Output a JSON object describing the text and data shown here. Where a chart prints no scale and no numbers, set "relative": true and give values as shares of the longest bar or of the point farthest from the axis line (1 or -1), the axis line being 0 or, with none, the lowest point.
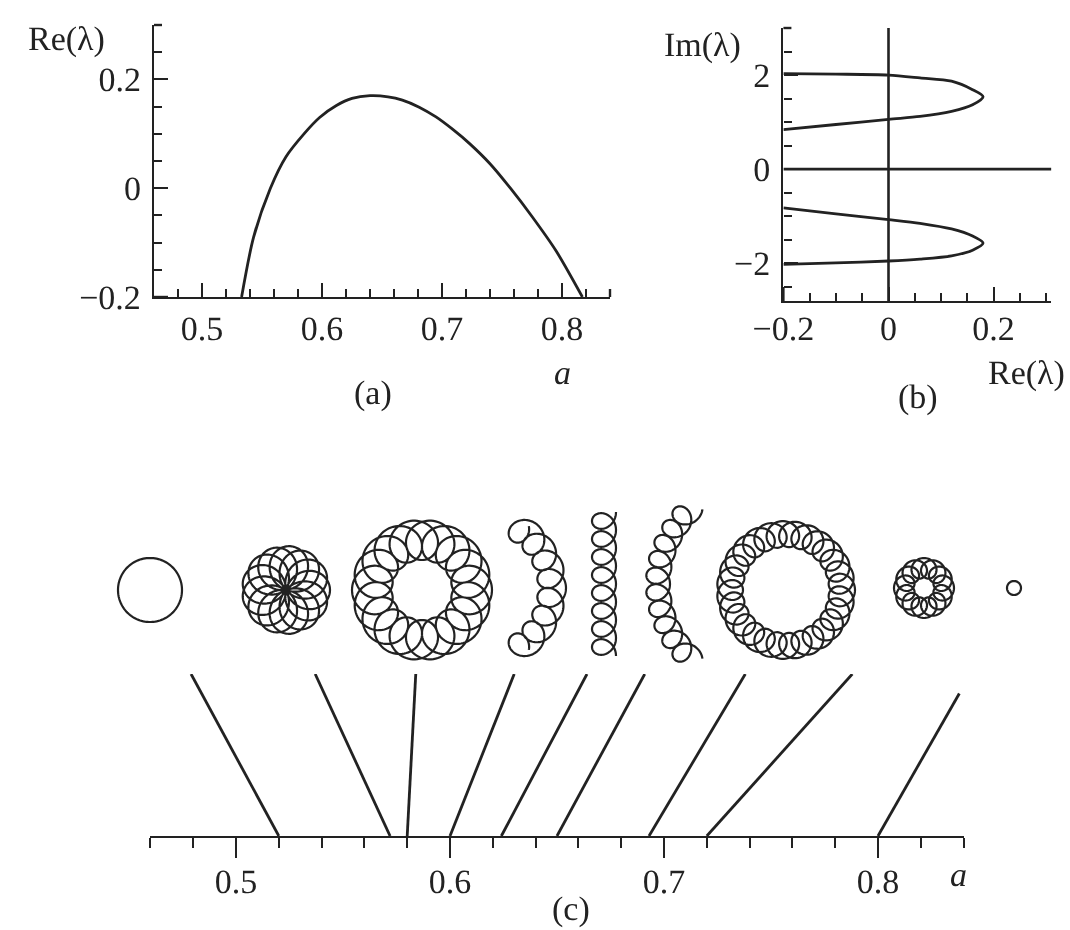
{
  "chart_data": [
    {
      "type": "line",
      "ylabel": "Re(λ)",
      "xlabel": "a",
      "annotations": [
        "(a)"
      ],
      "color": "#222222",
      "x": [
        0.533,
        0.543,
        0.557,
        0.57,
        0.585,
        0.598,
        0.612,
        0.625,
        0.64,
        0.655,
        0.667,
        0.681,
        0.695,
        0.709,
        0.723,
        0.74,
        0.757,
        0.775,
        0.795,
        0.817
      ],
      "values": [
        -0.2,
        -0.09,
        0.0,
        0.058,
        0.1,
        0.13,
        0.152,
        0.165,
        0.17,
        0.168,
        0.162,
        0.149,
        0.131,
        0.108,
        0.082,
        0.045,
        0.0,
        -0.052,
        -0.115,
        -0.2
      ],
      "xlim": [
        0.46,
        0.84
      ],
      "ylim": [
        -0.2,
        0.3
      ],
      "xticks": [
        {
          "value": 0.48,
          "label": null
        },
        0.5,
        {
          "value": 0.52,
          "label": null
        },
        {
          "value": 0.54,
          "label": null
        },
        {
          "value": 0.56,
          "label": null
        },
        {
          "value": 0.58,
          "label": null
        },
        0.6,
        {
          "value": 0.62,
          "label": null
        },
        {
          "value": 0.64,
          "label": null
        },
        {
          "value": 0.66,
          "label": null
        },
        {
          "value": 0.68,
          "label": null
        },
        0.7,
        {
          "value": 0.72,
          "label": null
        },
        {
          "value": 0.74,
          "label": null
        },
        {
          "value": 0.76,
          "label": null
        },
        {
          "value": 0.78,
          "label": null
        },
        0.8,
        {
          "value": 0.82,
          "label": null
        },
        {
          "value": 0.84,
          "label": null
        }
      ],
      "yticks": [
        {
          "value": -0.2,
          "label": "−0.2"
        },
        {
          "value": -0.15,
          "label": null
        },
        {
          "value": -0.1,
          "label": null
        },
        {
          "value": -0.05,
          "label": null
        },
        0,
        {
          "value": 0.05,
          "label": null
        },
        {
          "value": 0.1,
          "label": null
        },
        {
          "value": 0.15,
          "label": null
        },
        0.2,
        {
          "value": 0.25,
          "label": null
        },
        {
          "value": 0.3,
          "label": null
        }
      ]
    },
    {
      "type": "line",
      "ylabel": "Im(λ)",
      "xlabel": "Re(λ)",
      "annotations": [
        "(b)"
      ],
      "series": [
        {
          "color": "#222222",
          "x": [
            -0.2,
            -0.1,
            0.0,
            0.06,
            0.12,
            0.16,
            0.18,
            0.16,
            0.12,
            0.06,
            0.0,
            -0.1,
            -0.2
          ],
          "values": [
            2.03,
            2.02,
            2.0,
            1.94,
            1.87,
            1.69,
            1.54,
            1.37,
            1.23,
            1.12,
            1.06,
            0.95,
            0.84
          ]
        },
        {
          "color": "#222222",
          "x": [
            -0.2,
            0.31
          ],
          "values": [
            0,
            0
          ]
        },
        {
          "color": "#222222",
          "x": [
            -0.2,
            -0.1,
            0.0,
            0.06,
            0.12,
            0.16,
            0.18,
            0.16,
            0.12,
            0.06,
            0.0,
            -0.1,
            -0.2
          ],
          "values": [
            -0.82,
            -0.95,
            -1.07,
            -1.15,
            -1.27,
            -1.42,
            -1.57,
            -1.72,
            -1.84,
            -1.91,
            -1.95,
            -1.99,
            -2.02
          ]
        }
      ],
      "ref_lines": [
        {
          "axis": "x",
          "value": 0,
          "color": "#222222"
        }
      ],
      "xlim": [
        -0.2,
        0.31
      ],
      "ylim": [
        -2.8,
        3
      ],
      "xticks": [
        {
          "value": -0.2,
          "label": "−0.2"
        },
        {
          "value": -0.15,
          "label": null
        },
        {
          "value": -0.1,
          "label": null
        },
        {
          "value": -0.05,
          "label": null
        },
        0,
        {
          "value": 0.05,
          "label": null
        },
        {
          "value": 0.1,
          "label": null
        },
        {
          "value": 0.15,
          "label": null
        },
        0.2,
        {
          "value": 0.25,
          "label": null
        },
        {
          "value": 0.3,
          "label": null
        }
      ],
      "yticks": [
        {
          "value": -2.5,
          "label": null
        },
        {
          "value": -2,
          "label": "−2"
        },
        {
          "value": -1.5,
          "label": null
        },
        {
          "value": -1,
          "label": null
        },
        {
          "value": -0.5,
          "label": null
        },
        0,
        {
          "value": 0.5,
          "label": null
        },
        {
          "value": 1,
          "label": null
        },
        {
          "value": 1.5,
          "label": null
        },
        2,
        {
          "value": 2.5,
          "label": null
        },
        {
          "value": 3,
          "label": null
        }
      ]
    },
    {
      "type": "line",
      "relative": true,
      "xlabel": "a",
      "annotations": [
        "(c)"
      ],
      "series": [
        {
          "color": "#222222",
          "x": [
            0.52,
            0.479
          ],
          "values": [
            0,
            1
          ]
        },
        {
          "color": "#222222",
          "x": [
            0.572,
            0.537
          ],
          "values": [
            0,
            1
          ]
        },
        {
          "color": "#222222",
          "x": [
            0.58,
            0.584
          ],
          "values": [
            0,
            1
          ]
        },
        {
          "color": "#222222",
          "x": [
            0.6,
            0.63
          ],
          "values": [
            0,
            1
          ]
        },
        {
          "color": "#222222",
          "x": [
            0.624,
            0.664
          ],
          "values": [
            0,
            1
          ]
        },
        {
          "color": "#222222",
          "x": [
            0.65,
            0.691
          ],
          "values": [
            0,
            1
          ]
        },
        {
          "color": "#222222",
          "x": [
            0.693,
            0.738
          ],
          "values": [
            0,
            1
          ]
        },
        {
          "color": "#222222",
          "x": [
            0.72,
            0.788
          ],
          "values": [
            0,
            1
          ]
        },
        {
          "color": "#222222",
          "x": [
            0.8,
            0.838
          ],
          "values": [
            0,
            0.88
          ]
        }
      ],
      "xlim": [
        0.46,
        0.84
      ],
      "xticks": [
        {
          "value": 0.46,
          "label": null
        },
        {
          "value": 0.48,
          "label": null
        },
        0.5,
        {
          "value": 0.52,
          "label": null
        },
        {
          "value": 0.54,
          "label": null
        },
        {
          "value": 0.56,
          "label": null
        },
        {
          "value": 0.58,
          "label": null
        },
        0.6,
        {
          "value": 0.62,
          "label": null
        },
        {
          "value": 0.64,
          "label": null
        },
        {
          "value": 0.66,
          "label": null
        },
        {
          "value": 0.68,
          "label": null
        },
        0.7,
        {
          "value": 0.72,
          "label": null
        },
        {
          "value": 0.74,
          "label": null
        },
        {
          "value": 0.76,
          "label": null
        },
        {
          "value": 0.78,
          "label": null
        },
        0.8,
        {
          "value": 0.82,
          "label": null
        },
        {
          "value": 0.84,
          "label": null
        }
      ]
    }
  ]
}
